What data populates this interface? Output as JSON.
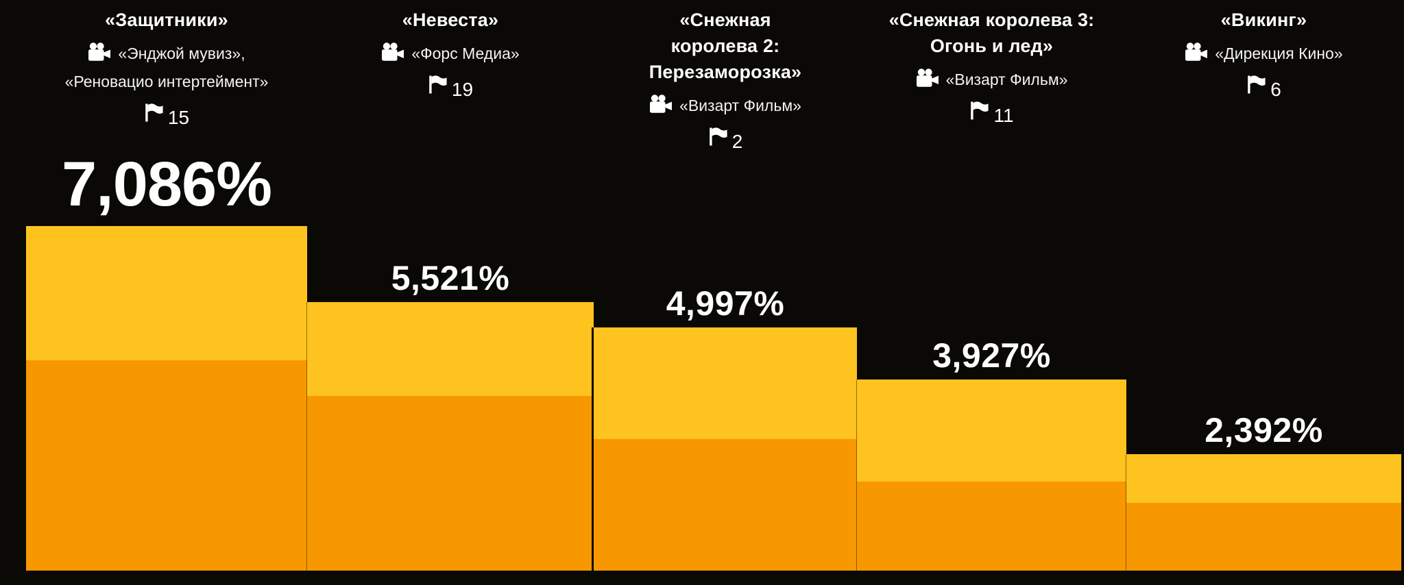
{
  "chart_data": {
    "type": "bar",
    "title": "",
    "unit": "%",
    "grid": false,
    "legend": null,
    "ylim": [
      0,
      7500
    ],
    "categories": [
      "«Защитники»",
      "«Невеста»",
      "«Снежная королева 2: Перезаморозка»",
      "«Снежная королева 3: Огонь и лед»",
      "«Викинг»"
    ],
    "values": [
      7086,
      5521,
      4997,
      3927,
      2392
    ],
    "value_labels": [
      "7,086%",
      "5,521%",
      "4,997%",
      "3,927%",
      "2,392%"
    ],
    "flag_counts": [
      15,
      19,
      2,
      11,
      6
    ],
    "bar_style": "stacked-two-tone",
    "lower_segment_fraction_estimate": [
      0.61,
      0.65,
      0.54,
      0.465,
      0.585
    ],
    "colors": {
      "bar_upper": "#FEC31E",
      "bar_lower": "#F89800",
      "background": "#0B0906",
      "text": "#FFFFFF",
      "studio_text": "#F3F3F3"
    },
    "bars": [
      {
        "title_lines": [
          "«Защитники»"
        ],
        "studio_lines": [
          "«Энджой мувиз»,",
          "«Реновацио интертеймент»"
        ],
        "flag_count": "15",
        "percent_label": "7,086%",
        "value": 7086,
        "lower_fraction": 0.61,
        "emphasized": true
      },
      {
        "title_lines": [
          "«Невеста»"
        ],
        "studio_lines": [
          "«Форс Медиа»"
        ],
        "flag_count": "19",
        "percent_label": "5,521%",
        "value": 5521,
        "lower_fraction": 0.65,
        "emphasized": false
      },
      {
        "title_lines": [
          "«Снежная",
          "королева 2:",
          "Перезаморозка»"
        ],
        "studio_lines": [
          "«Визарт Фильм»"
        ],
        "flag_count": "2",
        "percent_label": "4,997%",
        "value": 4997,
        "lower_fraction": 0.54,
        "emphasized": false
      },
      {
        "title_lines": [
          "«Снежная королева 3:",
          "Огонь и лед»"
        ],
        "studio_lines": [
          "«Визарт Фильм»"
        ],
        "flag_count": "11",
        "percent_label": "3,927%",
        "value": 3927,
        "lower_fraction": 0.465,
        "emphasized": false
      },
      {
        "title_lines": [
          "«Викинг»"
        ],
        "studio_lines": [
          "«Дирекция Кино»"
        ],
        "flag_count": "6",
        "percent_label": "2,392%",
        "value": 2392,
        "lower_fraction": 0.585,
        "emphasized": false
      }
    ]
  }
}
